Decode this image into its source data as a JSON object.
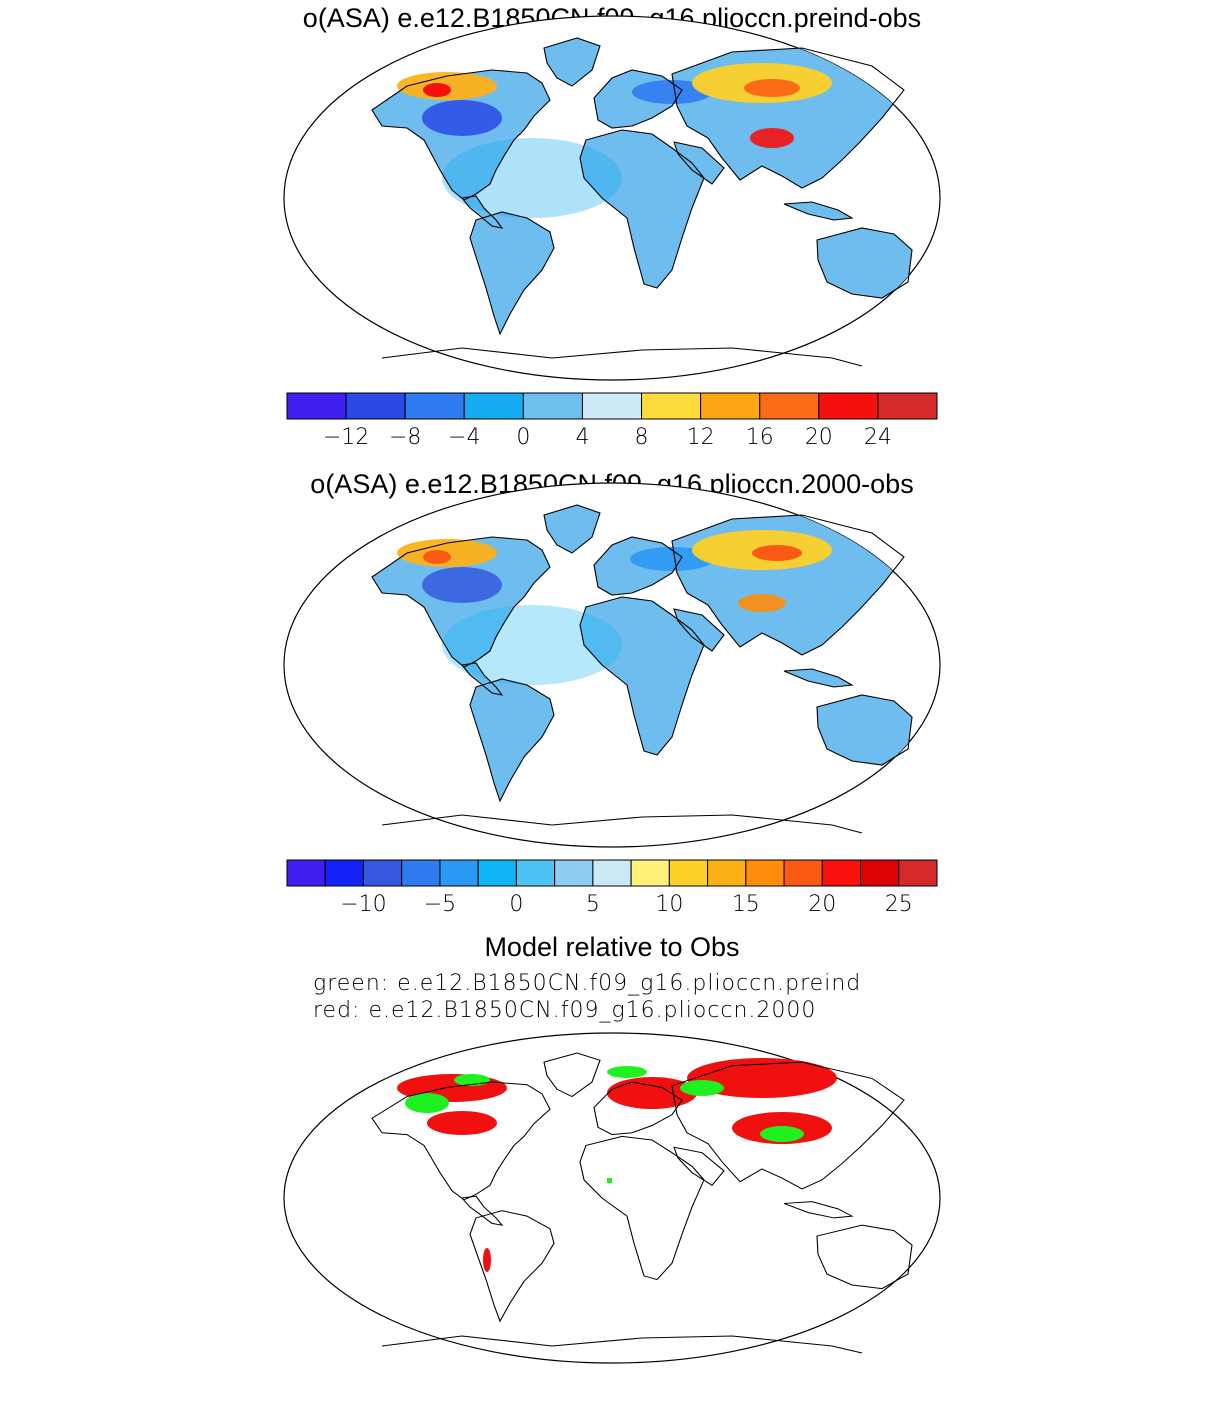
{
  "panels": [
    {
      "title": "o(ASA) e.e12.B1850CN.f09_g16.plioccn.preind-obs",
      "colorbar": {
        "colors": [
          "#3f1ff0",
          "#2a49e6",
          "#2f7bf0",
          "#16aaf2",
          "#6ec0ee",
          "#cde9f6",
          "#fddb3c",
          "#ffa412",
          "#fb6b16",
          "#f5100e",
          "#d42a2a"
        ],
        "tick_labels": [
          "−12",
          "−8",
          "−4",
          "0",
          "4",
          "8",
          "12",
          "16",
          "20",
          "24"
        ]
      }
    },
    {
      "title": "o(ASA) e.e12.B1850CN.f09_g16.plioccn.2000-obs",
      "colorbar": {
        "colors": [
          "#3f1ff0",
          "#1322f6",
          "#3658df",
          "#2f7bf0",
          "#2b98f3",
          "#0eb4f4",
          "#4cc3f2",
          "#8ecdf1",
          "#cbe8f6",
          "#fff17a",
          "#fdd028",
          "#fdb118",
          "#ff8c0a",
          "#fb5a14",
          "#f8100c",
          "#dc0206",
          "#d42a2a"
        ],
        "tick_labels": [
          "−10",
          "−5",
          "0",
          "5",
          "10",
          "15",
          "20",
          "25"
        ]
      }
    },
    {
      "title": "Model relative to Obs",
      "subtitle_lines": [
        "green: e.e12.B1850CN.f09_g16.plioccn.preind",
        "red: e.e12.B1850CN.f09_g16.plioccn.2000"
      ],
      "legend_colors": {
        "green": "#20f020",
        "red": "#f01010"
      }
    }
  ]
}
